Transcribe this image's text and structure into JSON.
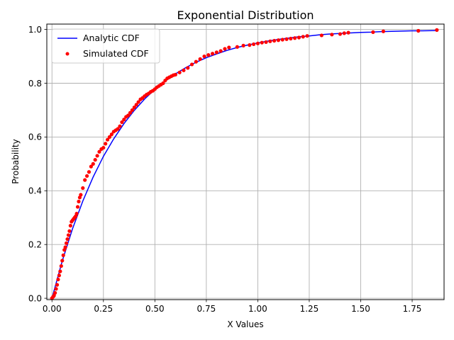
{
  "chart_data": {
    "type": "line",
    "title": "Exponential Distribution",
    "xlabel": "X Values",
    "ylabel": "Probability",
    "xlim": [
      -0.025,
      1.905
    ],
    "ylim": [
      -0.005,
      1.02
    ],
    "xticks": [
      0.0,
      0.25,
      0.5,
      0.75,
      1.0,
      1.25,
      1.5,
      1.75
    ],
    "xtick_labels": [
      "0.00",
      "0.25",
      "0.50",
      "0.75",
      "1.00",
      "1.25",
      "1.50",
      "1.75"
    ],
    "yticks": [
      0.0,
      0.2,
      0.4,
      0.6,
      0.8,
      1.0
    ],
    "ytick_labels": [
      "0.0",
      "0.2",
      "0.4",
      "0.6",
      "0.8",
      "1.0"
    ],
    "grid": true,
    "legend_position": "upper left",
    "series": [
      {
        "name": "Analytic CDF",
        "kind": "line",
        "color": "#0000ff",
        "x": [
          0.0,
          0.05,
          0.1,
          0.15,
          0.2,
          0.25,
          0.3,
          0.35,
          0.4,
          0.45,
          0.5,
          0.55,
          0.6,
          0.65,
          0.7,
          0.75,
          0.8,
          0.85,
          0.9,
          0.95,
          1.0,
          1.05,
          1.1,
          1.15,
          1.2,
          1.25,
          1.3,
          1.35,
          1.4,
          1.45,
          1.5,
          1.55,
          1.6,
          1.65,
          1.7,
          1.75,
          1.8,
          1.87
        ],
        "y": [
          0.0,
          0.139,
          0.259,
          0.362,
          0.451,
          0.528,
          0.593,
          0.65,
          0.699,
          0.741,
          0.777,
          0.808,
          0.835,
          0.858,
          0.878,
          0.895,
          0.909,
          0.922,
          0.933,
          0.942,
          0.95,
          0.957,
          0.963,
          0.968,
          0.973,
          0.976,
          0.98,
          0.983,
          0.985,
          0.987,
          0.989,
          0.99,
          0.992,
          0.993,
          0.994,
          0.995,
          0.995,
          0.996
        ]
      },
      {
        "name": "Simulated CDF",
        "kind": "scatter",
        "color": "#ff0000",
        "x": [
          0.0,
          0.005,
          0.01,
          0.015,
          0.02,
          0.025,
          0.03,
          0.035,
          0.04,
          0.045,
          0.05,
          0.055,
          0.06,
          0.065,
          0.07,
          0.075,
          0.08,
          0.085,
          0.09,
          0.095,
          0.1,
          0.105,
          0.11,
          0.115,
          0.12,
          0.125,
          0.13,
          0.135,
          0.14,
          0.15,
          0.16,
          0.17,
          0.18,
          0.19,
          0.2,
          0.21,
          0.22,
          0.23,
          0.24,
          0.25,
          0.26,
          0.27,
          0.28,
          0.29,
          0.3,
          0.31,
          0.32,
          0.33,
          0.34,
          0.35,
          0.36,
          0.37,
          0.38,
          0.39,
          0.4,
          0.41,
          0.42,
          0.43,
          0.44,
          0.45,
          0.46,
          0.47,
          0.48,
          0.49,
          0.5,
          0.51,
          0.52,
          0.53,
          0.54,
          0.55,
          0.56,
          0.57,
          0.58,
          0.59,
          0.6,
          0.62,
          0.64,
          0.66,
          0.68,
          0.7,
          0.72,
          0.74,
          0.76,
          0.78,
          0.8,
          0.82,
          0.84,
          0.86,
          0.9,
          0.93,
          0.96,
          0.98,
          1.0,
          1.02,
          1.04,
          1.06,
          1.08,
          1.1,
          1.12,
          1.14,
          1.16,
          1.18,
          1.2,
          1.22,
          1.24,
          1.31,
          1.36,
          1.4,
          1.42,
          1.44,
          1.56,
          1.61,
          1.78,
          1.87
        ],
        "y": [
          0.0,
          0.005,
          0.01,
          0.02,
          0.035,
          0.05,
          0.07,
          0.085,
          0.1,
          0.12,
          0.14,
          0.16,
          0.18,
          0.19,
          0.205,
          0.22,
          0.235,
          0.25,
          0.27,
          0.285,
          0.29,
          0.295,
          0.3,
          0.305,
          0.315,
          0.34,
          0.36,
          0.375,
          0.385,
          0.41,
          0.44,
          0.455,
          0.47,
          0.49,
          0.5,
          0.515,
          0.53,
          0.545,
          0.555,
          0.56,
          0.575,
          0.59,
          0.6,
          0.61,
          0.62,
          0.625,
          0.63,
          0.64,
          0.655,
          0.665,
          0.675,
          0.68,
          0.69,
          0.7,
          0.71,
          0.72,
          0.73,
          0.74,
          0.745,
          0.752,
          0.758,
          0.762,
          0.768,
          0.772,
          0.778,
          0.785,
          0.79,
          0.795,
          0.8,
          0.81,
          0.818,
          0.822,
          0.826,
          0.83,
          0.832,
          0.84,
          0.848,
          0.857,
          0.87,
          0.88,
          0.89,
          0.9,
          0.905,
          0.91,
          0.915,
          0.92,
          0.928,
          0.933,
          0.935,
          0.94,
          0.942,
          0.945,
          0.948,
          0.951,
          0.953,
          0.956,
          0.958,
          0.96,
          0.962,
          0.964,
          0.966,
          0.968,
          0.97,
          0.973,
          0.976,
          0.978,
          0.981,
          0.983,
          0.986,
          0.988,
          0.99,
          0.993,
          0.995,
          0.998
        ]
      }
    ]
  }
}
